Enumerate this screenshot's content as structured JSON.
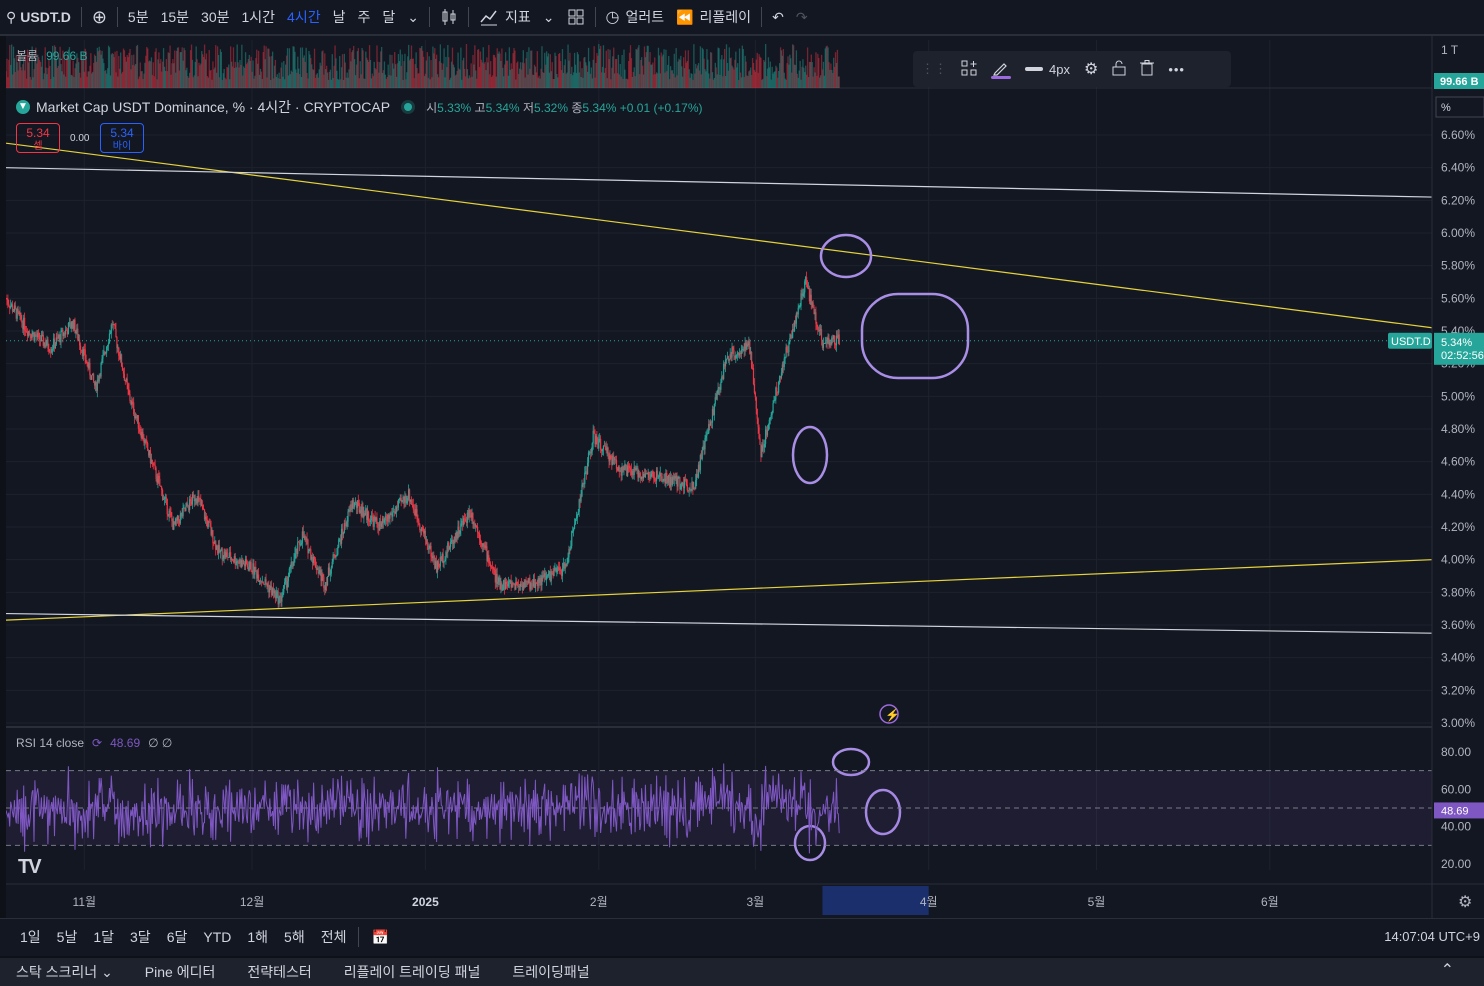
{
  "topbar": {
    "symbol": "USDT.D",
    "intervals": [
      "5분",
      "15분",
      "30분",
      "1시간",
      "4시간",
      "날",
      "주",
      "달"
    ],
    "active_interval": "4시간",
    "indicators_label": "지표",
    "alert_label": "얼러트",
    "replay_label": "리플레이"
  },
  "volume": {
    "label": "볼륨",
    "value": "99.66 B",
    "axis_value": "99.66 B",
    "axis_top": "1 T"
  },
  "legend": {
    "title": "Market Cap USDT Dominance, % · 4시간 · CRYPTOCAP",
    "o_label": "시",
    "o": "5.33%",
    "h_label": "고",
    "h": "5.34%",
    "l_label": "저",
    "l": "5.32%",
    "c_label": "종",
    "c": "5.34%",
    "change": "+0.01 (+0.17%)"
  },
  "trade": {
    "sell_price": "5.34",
    "sell_label": "셀",
    "spread": "0.00",
    "buy_price": "5.34",
    "buy_label": "바이"
  },
  "draw_toolbar": {
    "width_label": "4px"
  },
  "price_axis": {
    "unit": "%",
    "ticks": [
      "6.60%",
      "6.40%",
      "6.20%",
      "6.00%",
      "5.80%",
      "5.60%",
      "5.40%",
      "5.20%",
      "5.00%",
      "4.80%",
      "4.60%",
      "4.40%",
      "4.20%",
      "4.00%",
      "3.80%",
      "3.60%",
      "3.40%",
      "3.20%",
      "3.00%"
    ],
    "current_symbol": "USDT.D",
    "current_price": "5.34%",
    "countdown": "02:52:56"
  },
  "rsi": {
    "label": "RSI 14 close",
    "value": "48.69",
    "extra": "∅ ∅",
    "ticks": [
      "80.00",
      "60.00",
      "40.00",
      "20.00"
    ],
    "axis_value": "48.69"
  },
  "time_axis": {
    "labels": [
      "11월",
      "12월",
      "2025",
      "2월",
      "3월",
      "4월",
      "5월",
      "6월"
    ]
  },
  "bottombar": {
    "ranges": [
      "1일",
      "5날",
      "1달",
      "3달",
      "6달",
      "YTD",
      "1해",
      "5해",
      "전체"
    ],
    "clock": "14:07:04 UTC+9"
  },
  "panels": [
    "스탁 스크리너",
    "Pine 에디터",
    "전략테스터",
    "리플레이 트레이딩 패널",
    "트레이딩패널"
  ],
  "colors": {
    "up": "#26a69a",
    "down": "#f23645",
    "rsi": "#7e57c2",
    "trend_yellow": "#e6d33a",
    "trend_white": "#d1d4dc",
    "accent": "#2962ff"
  },
  "chart_data": {
    "type": "candlestick",
    "series_name": "USDT.D",
    "y_unit": "%",
    "ylim": [
      3.0,
      6.7
    ],
    "x_range": [
      "2024-10-18",
      "2025-06-30"
    ],
    "approx_close_path": [
      {
        "date": "2024-10-18",
        "v": 5.6
      },
      {
        "date": "2024-10-22",
        "v": 5.4
      },
      {
        "date": "2024-10-26",
        "v": 5.3
      },
      {
        "date": "2024-10-30",
        "v": 5.45
      },
      {
        "date": "2024-11-03",
        "v": 5.05
      },
      {
        "date": "2024-11-06",
        "v": 5.45
      },
      {
        "date": "2024-11-09",
        "v": 5.0
      },
      {
        "date": "2024-11-13",
        "v": 4.6
      },
      {
        "date": "2024-11-17",
        "v": 4.2
      },
      {
        "date": "2024-11-21",
        "v": 4.4
      },
      {
        "date": "2024-11-25",
        "v": 4.05
      },
      {
        "date": "2024-12-01",
        "v": 3.95
      },
      {
        "date": "2024-12-06",
        "v": 3.75
      },
      {
        "date": "2024-12-10",
        "v": 4.15
      },
      {
        "date": "2024-12-14",
        "v": 3.85
      },
      {
        "date": "2024-12-19",
        "v": 4.35
      },
      {
        "date": "2024-12-24",
        "v": 4.2
      },
      {
        "date": "2024-12-29",
        "v": 4.4
      },
      {
        "date": "2025-01-03",
        "v": 3.95
      },
      {
        "date": "2025-01-09",
        "v": 4.3
      },
      {
        "date": "2025-01-14",
        "v": 3.85
      },
      {
        "date": "2025-01-20",
        "v": 3.85
      },
      {
        "date": "2025-01-26",
        "v": 3.95
      },
      {
        "date": "2025-01-31",
        "v": 4.75
      },
      {
        "date": "2025-02-05",
        "v": 4.55
      },
      {
        "date": "2025-02-12",
        "v": 4.5
      },
      {
        "date": "2025-02-18",
        "v": 4.45
      },
      {
        "date": "2025-02-24",
        "v": 5.25
      },
      {
        "date": "2025-02-28",
        "v": 5.3
      },
      {
        "date": "2025-03-02",
        "v": 4.65
      },
      {
        "date": "2025-03-06",
        "v": 5.2
      },
      {
        "date": "2025-03-10",
        "v": 5.7
      },
      {
        "date": "2025-03-13",
        "v": 5.33
      },
      {
        "date": "2025-03-16",
        "v": 5.34
      }
    ],
    "trendlines": [
      {
        "color": "yellow",
        "from": {
          "date": "2024-10-18",
          "v": 6.55
        },
        "to": {
          "date": "2025-06-30",
          "v": 5.42
        }
      },
      {
        "color": "yellow",
        "from": {
          "date": "2024-10-18",
          "v": 3.63
        },
        "to": {
          "date": "2025-06-30",
          "v": 4.0
        }
      },
      {
        "color": "white",
        "from": {
          "date": "2024-10-18",
          "v": 6.4
        },
        "to": {
          "date": "2025-06-30",
          "v": 6.22
        }
      },
      {
        "color": "white",
        "from": {
          "date": "2024-10-18",
          "v": 3.67
        },
        "to": {
          "date": "2025-06-30",
          "v": 3.55
        }
      }
    ],
    "rsi": {
      "levels": [
        70,
        50,
        30
      ],
      "ylim": [
        10,
        90
      ],
      "last": 48.69
    }
  }
}
